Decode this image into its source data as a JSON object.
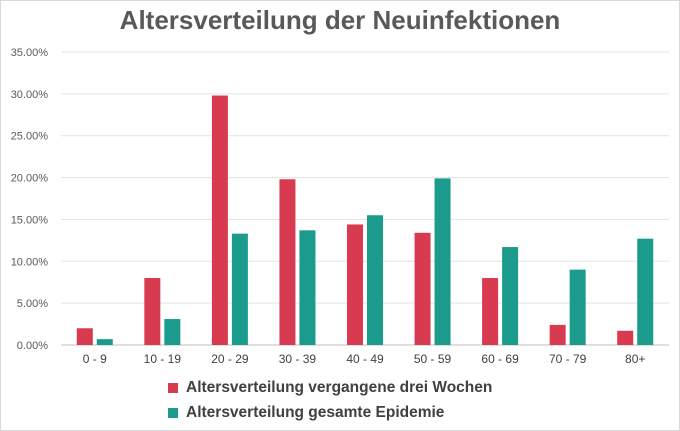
{
  "chart_data": {
    "type": "bar",
    "title": "Altersverteilung der Neuinfektionen",
    "categories": [
      "0 - 9",
      "10 - 19",
      "20 - 29",
      "30 - 39",
      "40 - 49",
      "50 - 59",
      "60 - 69",
      "70 - 79",
      "80+"
    ],
    "series": [
      {
        "name": "Altersverteilung vergangene drei Wochen",
        "color": "#d83a4f",
        "values": [
          2.0,
          8.0,
          29.8,
          19.8,
          14.4,
          13.4,
          8.0,
          2.4,
          1.7
        ]
      },
      {
        "name": "Altersverteilung gesamte Epidemie",
        "color": "#1a9b8c",
        "values": [
          0.7,
          3.1,
          13.3,
          13.7,
          15.5,
          19.9,
          11.7,
          9.0,
          12.7
        ]
      }
    ],
    "y_ticks": [
      "0.00%",
      "5.00%",
      "10.00%",
      "15.00%",
      "20.00%",
      "25.00%",
      "30.00%",
      "35.00%"
    ],
    "ylim": [
      0,
      35
    ],
    "grid": true,
    "legend_position": "bottom"
  }
}
